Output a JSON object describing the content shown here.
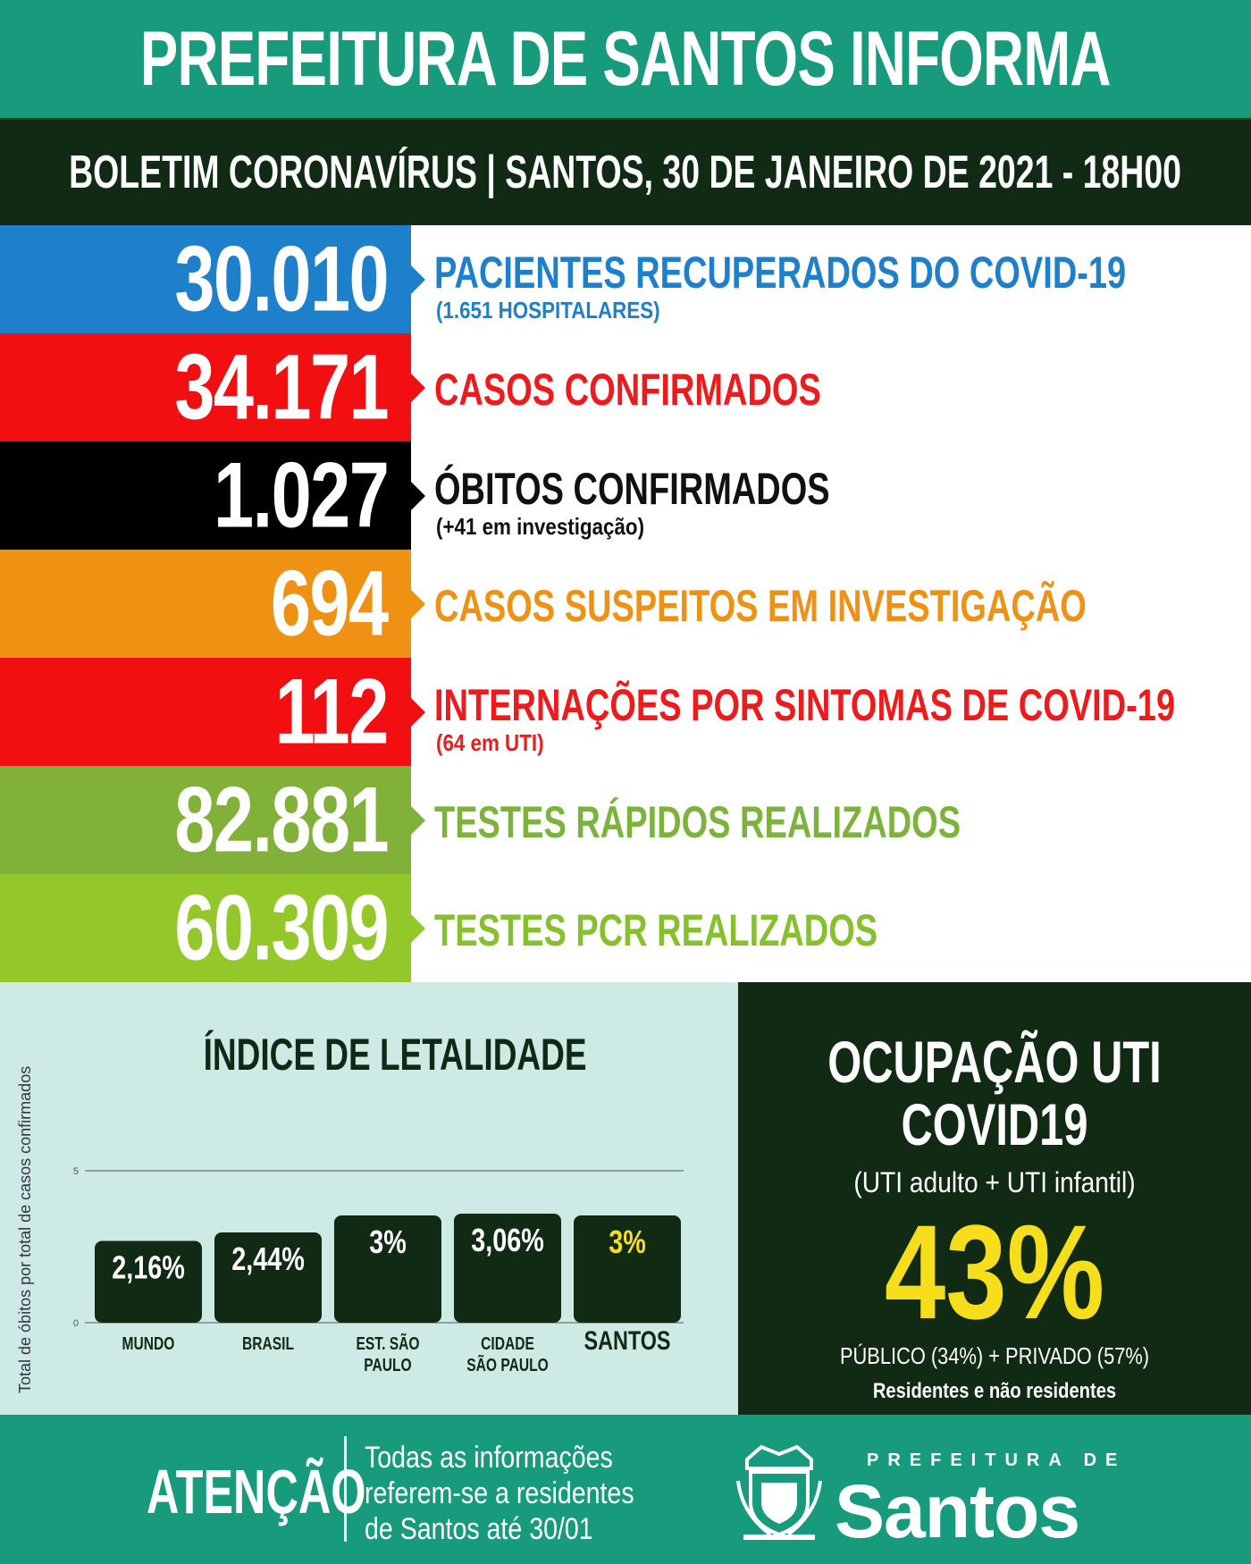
{
  "header": {
    "title": "PREFEITURA DE SANTOS INFORMA",
    "subtitle": "BOLETIM CORONAVÍRUS  |  SANTOS, 30 DE JANEIRO DE 2021 - 18H00"
  },
  "stats": [
    {
      "value": "30.010",
      "label": "PACIENTES RECUPERADOS DO COVID-19",
      "sub": "(1.651 HOSPITALARES)",
      "box_color": "#1e7fcb",
      "text_color": "#1e7fcb"
    },
    {
      "value": "34.171",
      "label": "CASOS CONFIRMADOS",
      "sub": "",
      "box_color": "#f20f12",
      "text_color": "#ee1a1c"
    },
    {
      "value": "1.027",
      "label": "ÓBITOS CONFIRMADOS",
      "sub": "(+41 em investigação)",
      "box_color": "#000000",
      "text_color": "#111111"
    },
    {
      "value": "694",
      "label": "CASOS SUSPEITOS EM INVESTIGAÇÃO",
      "sub": "",
      "box_color": "#ef9213",
      "text_color": "#ef9213"
    },
    {
      "value": "112",
      "label": "INTERNAÇÕES POR SINTOMAS DE COVID-19",
      "sub": "(64 em UTI)",
      "box_color": "#f20f12",
      "text_color": "#ee1a1c"
    },
    {
      "value": "82.881",
      "label": "TESTES RÁPIDOS REALIZADOS",
      "sub": "",
      "box_color": "#82b13a",
      "text_color": "#7cb33a"
    },
    {
      "value": "60.309",
      "label": "TESTES PCR REALIZADOS",
      "sub": "",
      "box_color": "#94c82a",
      "text_color": "#86c02c"
    }
  ],
  "chart_data": {
    "type": "bar",
    "title": "ÍNDICE DE LETALIDADE",
    "ylabel": "Total de óbitos por total de casos confirmados",
    "yticks": [
      "5",
      "0"
    ],
    "ylim": [
      0,
      5
    ],
    "categories": [
      "MUNDO",
      "BRASIL",
      "EST. SÃO PAULO",
      "CIDADE SÃO PAULO",
      "SANTOS"
    ],
    "category_lines": [
      [
        "MUNDO"
      ],
      [
        "BRASIL"
      ],
      [
        "EST. SÃO",
        "PAULO"
      ],
      [
        "CIDADE",
        "SÃO PAULO"
      ],
      [
        "SANTOS"
      ]
    ],
    "values": [
      2.16,
      2.44,
      3,
      3.06,
      3
    ],
    "value_labels": [
      "2,16%",
      "2,44%",
      "3%",
      "3,06%",
      "3%"
    ],
    "bar_color": "#102a14",
    "highlight_label_color": "#f7de1b",
    "highlight_index": 4,
    "grid": false
  },
  "uti": {
    "title_line1": "OCUPAÇÃO UTI",
    "title_line2": "COVID19",
    "subtitle": "(UTI adulto + UTI infantil)",
    "percent": "43%",
    "detail": "PÚBLICO (34%) + PRIVADO (57%)",
    "detail2": "Residentes e não residentes"
  },
  "footer": {
    "attention": "ATENÇÃO",
    "note_line1": "Todas as informações",
    "note_line2": "referem-se a residentes",
    "note_line3": "de Santos até 30/01",
    "brand_small": "PREFEITURA DE",
    "brand_big": "Santos"
  },
  "colors": {
    "header_green": "#189a7c",
    "dark_green": "#102a14",
    "chart_bg": "#cdebe4",
    "highlight_yellow": "#f7de1b"
  }
}
